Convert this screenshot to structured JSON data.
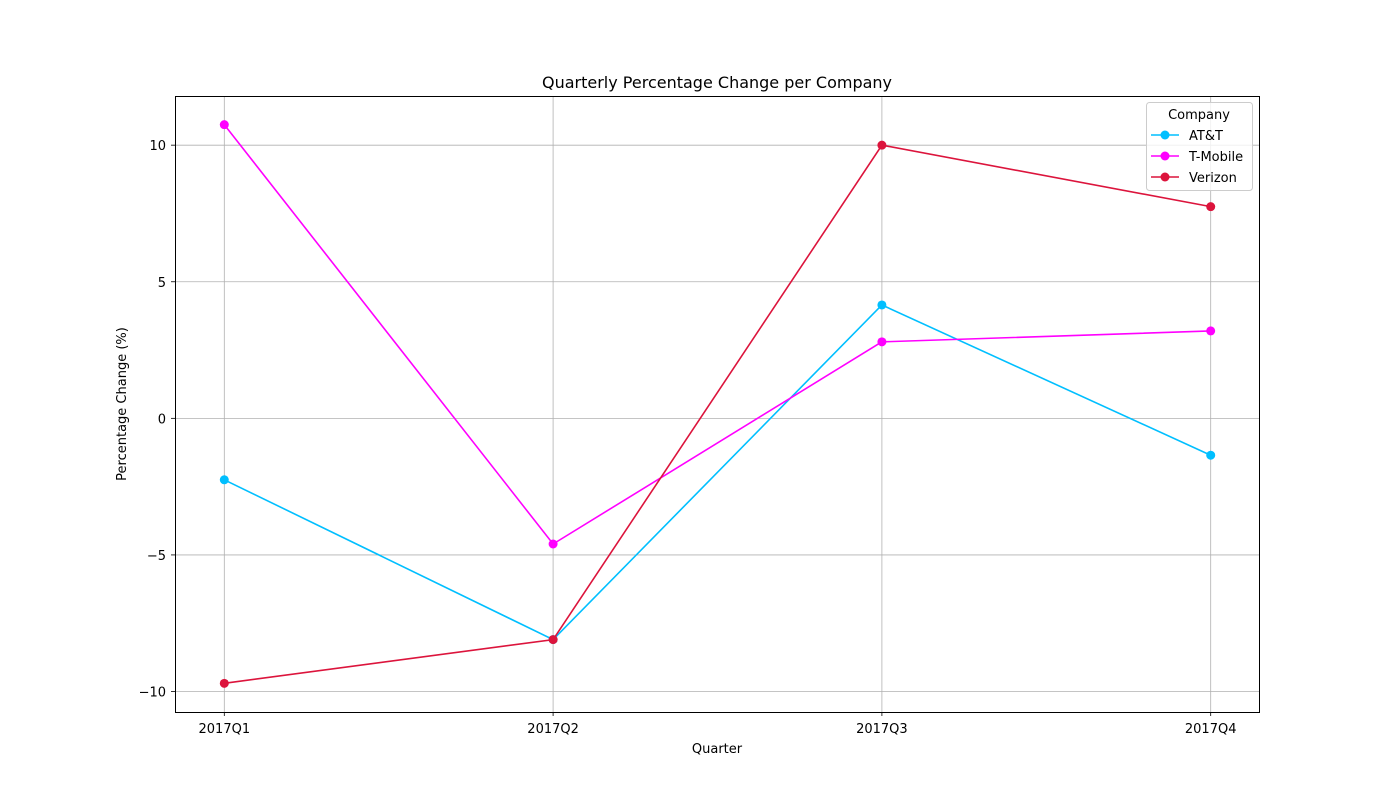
{
  "chart_data": {
    "type": "line",
    "title": "Quarterly Percentage Change per Company",
    "xlabel": "Quarter",
    "ylabel": "Percentage Change (%)",
    "categories": [
      "2017Q1",
      "2017Q2",
      "2017Q3",
      "2017Q4"
    ],
    "ylim": [
      -10.75,
      11.8
    ],
    "yticks": [
      -10,
      -5,
      0,
      5,
      10
    ],
    "ytick_labels": [
      "−10",
      "−5",
      "0",
      "5",
      "10"
    ],
    "grid": true,
    "legend": {
      "title": "Company",
      "placement": "top-right"
    },
    "series": [
      {
        "name": "AT&T",
        "color": "#00bfff",
        "values": [
          -2.25,
          -8.1,
          4.15,
          -1.35
        ]
      },
      {
        "name": "T-Mobile",
        "color": "#ff00ff",
        "values": [
          10.75,
          -4.6,
          2.8,
          3.2
        ]
      },
      {
        "name": "Verizon",
        "color": "#dc143c",
        "values": [
          -9.7,
          -8.1,
          10.0,
          7.75
        ]
      }
    ]
  }
}
